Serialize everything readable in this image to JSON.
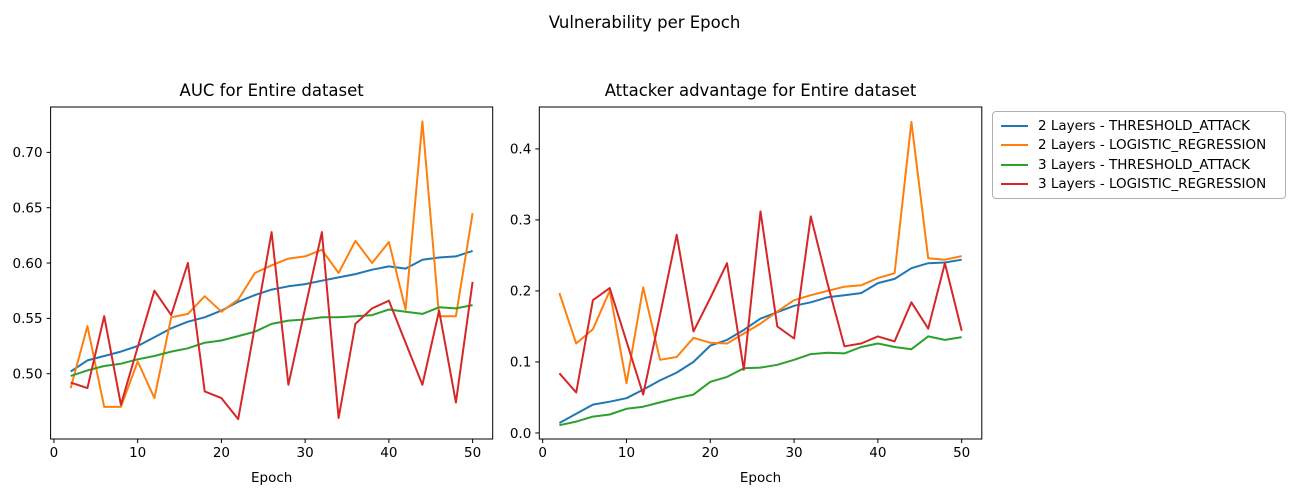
{
  "figure": {
    "title": "Vulnerability per Epoch"
  },
  "legend": {
    "items": [
      {
        "label": "2 Layers - THRESHOLD_ATTACK",
        "color": "#1f77b4"
      },
      {
        "label": "2 Layers - LOGISTIC_REGRESSION",
        "color": "#ff7f0e"
      },
      {
        "label": "3 Layers - THRESHOLD_ATTACK",
        "color": "#2ca02c"
      },
      {
        "label": "3 Layers - LOGISTIC_REGRESSION",
        "color": "#d62728"
      }
    ]
  },
  "chart_data": [
    {
      "type": "line",
      "title": "AUC for Entire dataset",
      "xlabel": "Epoch",
      "grid": false,
      "legend_position": "outside-right",
      "xlim": [
        -0.4,
        52.4
      ],
      "ylim": [
        0.441,
        0.741
      ],
      "xticks": [
        0,
        10,
        20,
        30,
        40,
        50
      ],
      "xtick_labels": [
        "0",
        "10",
        "20",
        "30",
        "40",
        "50"
      ],
      "yticks": [
        0.5,
        0.55,
        0.6,
        0.65,
        0.7
      ],
      "ytick_labels": [
        "0.50",
        "0.55",
        "0.60",
        "0.65",
        "0.70"
      ],
      "x": [
        2,
        4,
        6,
        8,
        10,
        12,
        14,
        16,
        18,
        20,
        22,
        24,
        26,
        28,
        30,
        32,
        34,
        36,
        38,
        40,
        42,
        44,
        46,
        48,
        50
      ],
      "series": [
        {
          "name": "2 Layers - THRESHOLD_ATTACK",
          "color": "#1f77b4",
          "values": [
            0.502,
            0.512,
            0.516,
            0.52,
            0.525,
            0.533,
            0.541,
            0.547,
            0.551,
            0.557,
            0.565,
            0.571,
            0.576,
            0.579,
            0.581,
            0.584,
            0.587,
            0.59,
            0.594,
            0.597,
            0.595,
            0.603,
            0.605,
            0.606,
            0.611
          ]
        },
        {
          "name": "2 Layers - LOGISTIC_REGRESSION",
          "color": "#ff7f0e",
          "values": [
            0.487,
            0.543,
            0.47,
            0.47,
            0.511,
            0.478,
            0.551,
            0.554,
            0.57,
            0.556,
            0.567,
            0.591,
            0.598,
            0.604,
            0.606,
            0.612,
            0.591,
            0.62,
            0.6,
            0.619,
            0.558,
            0.728,
            0.552,
            0.552,
            0.645
          ]
        },
        {
          "name": "3 Layers - THRESHOLD_ATTACK",
          "color": "#2ca02c",
          "values": [
            0.498,
            0.503,
            0.507,
            0.509,
            0.513,
            0.516,
            0.52,
            0.523,
            0.528,
            0.53,
            0.534,
            0.538,
            0.545,
            0.548,
            0.549,
            0.551,
            0.551,
            0.552,
            0.553,
            0.558,
            0.556,
            0.554,
            0.56,
            0.559,
            0.562
          ]
        },
        {
          "name": "3 Layers - LOGISTIC_REGRESSION",
          "color": "#d62728",
          "values": [
            0.492,
            0.487,
            0.552,
            0.472,
            0.524,
            0.575,
            0.553,
            0.6,
            0.484,
            0.478,
            0.459,
            0.543,
            0.628,
            0.49,
            0.559,
            0.628,
            0.46,
            0.545,
            0.559,
            0.566,
            0.528,
            0.49,
            0.557,
            0.474,
            0.583
          ]
        }
      ]
    },
    {
      "type": "line",
      "title": "Attacker advantage for Entire dataset",
      "xlabel": "Epoch",
      "grid": false,
      "legend_position": "outside-right",
      "xlim": [
        -0.4,
        52.4
      ],
      "ylim": [
        -0.0085,
        0.459
      ],
      "xticks": [
        0,
        10,
        20,
        30,
        40,
        50
      ],
      "xtick_labels": [
        "0",
        "10",
        "20",
        "30",
        "40",
        "50"
      ],
      "yticks": [
        0.0,
        0.1,
        0.2,
        0.3,
        0.4
      ],
      "ytick_labels": [
        "0.0",
        "0.1",
        "0.2",
        "0.3",
        "0.4"
      ],
      "x": [
        2,
        4,
        6,
        8,
        10,
        12,
        14,
        16,
        18,
        20,
        22,
        24,
        26,
        28,
        30,
        32,
        34,
        36,
        38,
        40,
        42,
        44,
        46,
        48,
        50
      ],
      "series": [
        {
          "name": "2 Layers - THRESHOLD_ATTACK",
          "color": "#1f77b4",
          "values": [
            0.014,
            0.027,
            0.04,
            0.044,
            0.049,
            0.061,
            0.074,
            0.085,
            0.1,
            0.123,
            0.131,
            0.145,
            0.161,
            0.17,
            0.179,
            0.184,
            0.191,
            0.194,
            0.197,
            0.211,
            0.217,
            0.232,
            0.239,
            0.24,
            0.244
          ]
        },
        {
          "name": "2 Layers - LOGISTIC_REGRESSION",
          "color": "#ff7f0e",
          "values": [
            0.197,
            0.126,
            0.146,
            0.2,
            0.07,
            0.205,
            0.103,
            0.107,
            0.134,
            0.127,
            0.126,
            0.14,
            0.154,
            0.171,
            0.187,
            0.194,
            0.2,
            0.206,
            0.208,
            0.218,
            0.225,
            0.438,
            0.246,
            0.244,
            0.249
          ]
        },
        {
          "name": "3 Layers - THRESHOLD_ATTACK",
          "color": "#2ca02c",
          "values": [
            0.011,
            0.016,
            0.023,
            0.026,
            0.034,
            0.037,
            0.043,
            0.049,
            0.054,
            0.072,
            0.079,
            0.091,
            0.092,
            0.096,
            0.103,
            0.111,
            0.113,
            0.112,
            0.121,
            0.126,
            0.121,
            0.118,
            0.136,
            0.131,
            0.135
          ]
        },
        {
          "name": "3 Layers - LOGISTIC_REGRESSION",
          "color": "#d62728",
          "values": [
            0.084,
            0.057,
            0.187,
            0.204,
            0.129,
            0.054,
            0.166,
            0.279,
            0.143,
            0.19,
            0.239,
            0.089,
            0.312,
            0.15,
            0.133,
            0.305,
            0.21,
            0.122,
            0.126,
            0.136,
            0.129,
            0.184,
            0.147,
            0.239,
            0.144
          ]
        }
      ]
    }
  ]
}
